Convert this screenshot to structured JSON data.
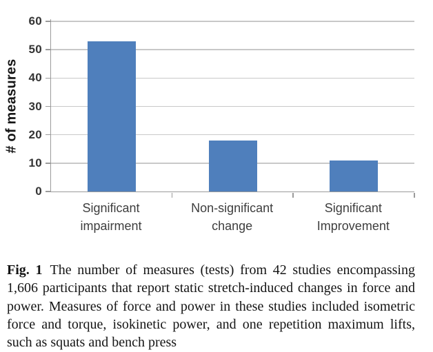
{
  "chart_data": {
    "type": "bar",
    "title": "",
    "xlabel": "",
    "ylabel": "# of measures",
    "categories": [
      "Significant\nimpairment",
      "Non-significant\nchange",
      "Significant\nImprovement"
    ],
    "values": [
      53,
      18,
      11
    ],
    "ylim": [
      0,
      60
    ],
    "yticks": [
      0,
      10,
      20,
      30,
      40,
      50,
      60
    ],
    "grid": true,
    "legend": false,
    "bar_color": "#4f7fbc",
    "gridline_color": "#c8c8c8",
    "axis_color": "#9a9a9a"
  },
  "caption": {
    "label": "Fig. 1",
    "text": "The number of measures (tests) from 42 studies encompassing 1,606 participants that report static stretch-induced changes in force and power. Measures of force and power in these studies included isometric force and torque, isokinetic power, and one repetition maximum lifts, such as squats and bench press"
  }
}
